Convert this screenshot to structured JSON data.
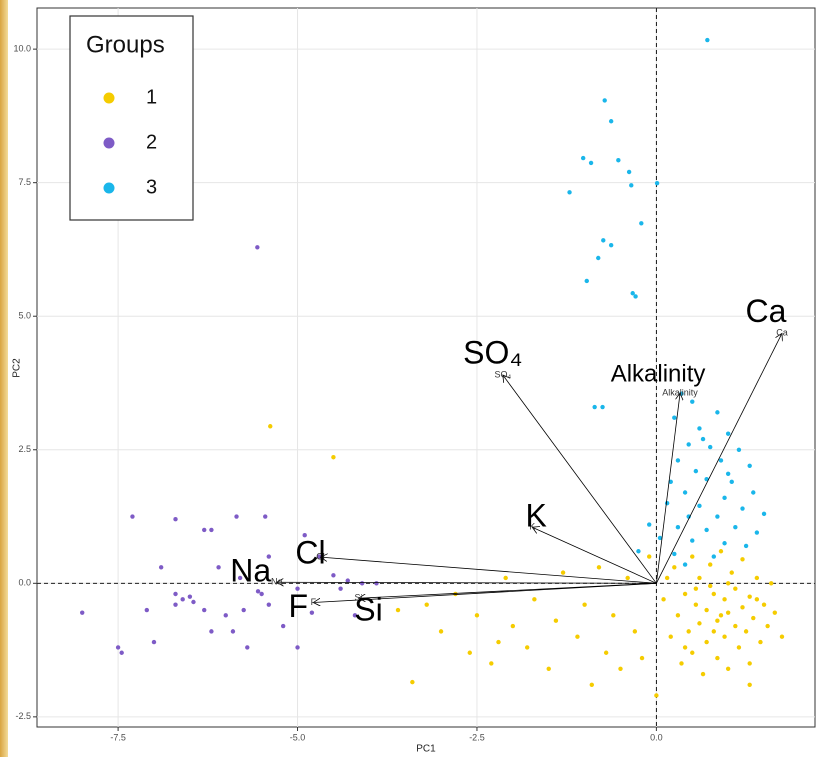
{
  "chart_data": {
    "type": "biplot",
    "xlabel": "PC1",
    "ylabel": "PC2",
    "xlim": [
      -8.63,
      2.21
    ],
    "ylim": [
      -2.69,
      10.77
    ],
    "xticks": [
      -7.5,
      {
        "value": -5.0,
        "label": "-5.0"
      },
      -2.5,
      {
        "value": 0.0,
        "label": "0.0"
      }
    ],
    "yticks": [
      -2.5,
      {
        "value": 0.0,
        "label": "0.0"
      },
      2.5,
      {
        "value": 5.0,
        "label": "5.0"
      },
      7.5,
      {
        "value": 10.0,
        "label": "10.0"
      }
    ],
    "grid": true,
    "reference_lines": {
      "x": 0,
      "y": 0
    },
    "legend_title": "Groups",
    "legend_position": "top-left",
    "series": [
      {
        "name": "1",
        "color": "#f5cc00",
        "x": [
          -5.38,
          -4.5,
          -3.4,
          0.0,
          -3.2,
          -3.0,
          -2.8,
          -2.6,
          -2.5,
          -2.3,
          -2.1,
          -2.0,
          -1.8,
          -1.7,
          -1.5,
          -1.4,
          -1.3,
          -1.1,
          -1.0,
          -0.9,
          -0.8,
          -0.7,
          -0.6,
          -0.5,
          -0.4,
          -0.3,
          -0.2,
          -0.1,
          -3.6,
          -2.2,
          0.1,
          0.2,
          0.25,
          0.3,
          0.35,
          0.4,
          0.45,
          0.5,
          0.5,
          0.55,
          0.6,
          0.6,
          0.65,
          0.7,
          0.7,
          0.75,
          0.8,
          0.8,
          0.85,
          0.9,
          0.9,
          0.95,
          0.95,
          1.0,
          1.0,
          1.05,
          1.1,
          1.1,
          1.15,
          1.2,
          1.2,
          1.25,
          1.3,
          1.3,
          1.35,
          1.4,
          1.45,
          1.5,
          1.55,
          1.6,
          1.65,
          1.75,
          1.3,
          0.4,
          0.75,
          0.15,
          0.55,
          1.0,
          1.4,
          0.85
        ],
        "values": [
          2.94,
          2.36,
          -1.85,
          -2.1,
          -0.4,
          -0.9,
          -0.2,
          -1.3,
          -0.6,
          -1.5,
          0.1,
          -0.8,
          -1.2,
          -0.3,
          -1.6,
          -0.7,
          0.2,
          -1.0,
          -0.4,
          -1.9,
          0.3,
          -1.3,
          -0.6,
          -1.6,
          0.1,
          -0.9,
          -1.4,
          0.5,
          -0.5,
          -1.1,
          -0.3,
          -1.0,
          0.3,
          -0.6,
          -1.5,
          -0.2,
          -0.9,
          0.5,
          -1.3,
          -0.4,
          -0.75,
          0.1,
          -1.7,
          -0.5,
          -1.1,
          0.35,
          -0.2,
          -0.9,
          -1.4,
          -0.6,
          0.6,
          -0.3,
          -1.0,
          -1.6,
          -0.55,
          0.2,
          -0.8,
          -0.1,
          -1.2,
          -0.45,
          0.45,
          -0.9,
          -0.25,
          -1.5,
          -0.65,
          0.1,
          -1.1,
          -0.4,
          -0.8,
          0.0,
          -0.55,
          -1.0,
          -1.9,
          -1.2,
          -0.05,
          0.1,
          -0.1,
          0.0,
          -0.3,
          -0.7
        ]
      },
      {
        "name": "2",
        "color": "#7e5bc6",
        "x": [
          -5.56,
          -8.0,
          -7.5,
          -7.45,
          -7.3,
          -7.0,
          -6.7,
          -6.3,
          -6.2,
          -5.85,
          -5.45,
          -5.4,
          -6.7,
          -6.6,
          -6.5,
          -6.45,
          -6.7,
          -6.3,
          -6.0,
          -5.9,
          -5.7,
          -5.5,
          -5.4,
          -5.2,
          -5.0,
          -5.0,
          -4.9,
          -4.7,
          -4.8,
          -4.5,
          -4.4,
          -4.3,
          -4.1,
          -3.9,
          -4.2,
          -6.1,
          -5.8,
          -5.55,
          -6.9,
          -7.1,
          -6.2,
          -5.75
        ],
        "values": [
          6.29,
          -0.55,
          -1.2,
          -1.3,
          1.25,
          -1.1,
          1.2,
          1.0,
          1.0,
          1.25,
          1.25,
          0.5,
          -0.2,
          -0.3,
          -0.25,
          -0.35,
          -0.4,
          -0.5,
          -0.6,
          -0.9,
          -1.2,
          -0.2,
          -0.4,
          -0.8,
          -1.2,
          -0.1,
          0.9,
          0.5,
          -0.55,
          0.15,
          -0.1,
          0.05,
          0.0,
          0.0,
          -0.6,
          0.3,
          0.1,
          -0.15,
          0.3,
          -0.5,
          -0.9,
          -0.5
        ]
      },
      {
        "name": "3",
        "color": "#1ab6ea",
        "x": [
          0.71,
          -0.72,
          -0.63,
          -1.02,
          -0.91,
          -0.53,
          -0.38,
          -1.21,
          -0.35,
          0.01,
          -0.21,
          -0.74,
          -0.63,
          -0.81,
          -0.97,
          -0.33,
          -0.29,
          -0.86,
          -0.75,
          0.35,
          0.5,
          0.25,
          0.6,
          0.85,
          1.0,
          0.45,
          0.75,
          1.15,
          0.3,
          0.9,
          0.55,
          1.3,
          0.2,
          0.7,
          1.05,
          0.4,
          0.95,
          1.35,
          0.15,
          0.6,
          1.2,
          0.45,
          0.85,
          1.5,
          -0.1,
          0.3,
          0.7,
          1.1,
          1.4,
          0.05,
          0.5,
          0.95,
          1.25,
          -0.25,
          0.25,
          0.8,
          0.4,
          1.0,
          0.65
        ],
        "values": [
          10.17,
          9.04,
          8.65,
          7.96,
          7.87,
          7.92,
          7.7,
          7.32,
          7.45,
          7.49,
          6.74,
          6.42,
          6.33,
          6.09,
          5.66,
          5.43,
          5.37,
          3.3,
          3.3,
          3.55,
          3.4,
          3.1,
          2.9,
          3.2,
          2.8,
          2.6,
          2.55,
          2.5,
          2.3,
          2.3,
          2.1,
          2.2,
          1.9,
          1.95,
          1.9,
          1.7,
          1.6,
          1.7,
          1.5,
          1.45,
          1.4,
          1.25,
          1.25,
          1.3,
          1.1,
          1.05,
          1.0,
          1.05,
          0.95,
          0.85,
          0.8,
          0.75,
          0.7,
          0.6,
          0.55,
          0.5,
          0.35,
          2.05,
          2.7
        ]
      }
    ],
    "loadings": [
      {
        "name": "Ca",
        "x": 1.75,
        "y": 4.68
      },
      {
        "name": "Alkalinity",
        "x": 0.33,
        "y": 3.56
      },
      {
        "name": "SO₄",
        "x": -2.14,
        "y": 3.9
      },
      {
        "name": "K",
        "x": -1.73,
        "y": 1.05
      },
      {
        "name": "Cl",
        "x": -4.68,
        "y": 0.49
      },
      {
        "name": "Na",
        "x": -5.29,
        "y": 0.02
      },
      {
        "name": "F",
        "x": -4.78,
        "y": -0.36
      },
      {
        "name": "Si",
        "x": -4.15,
        "y": -0.28
      }
    ]
  }
}
